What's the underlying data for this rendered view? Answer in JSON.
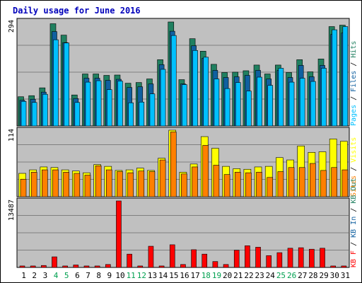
{
  "chart_data": {
    "type": "bar",
    "title": "Daily usage for June 2016",
    "categories": [
      "1",
      "2",
      "3",
      "4",
      "5",
      "6",
      "7",
      "8",
      "9",
      "10",
      "11",
      "12",
      "13",
      "14",
      "15",
      "16",
      "17",
      "18",
      "19",
      "20",
      "21",
      "22",
      "23",
      "24",
      "25",
      "26",
      "27",
      "28",
      "29",
      "30",
      "31"
    ],
    "weekend_days": [
      "4",
      "5",
      "11",
      "12",
      "18",
      "19",
      "25",
      "26"
    ],
    "colors": {
      "title": "#0000bb",
      "pages": "#00c0ff",
      "files": "#1060a0",
      "hits": "#208060",
      "sites": "#ff8000",
      "visits": "#ffff00",
      "kb_in": "#1060a0",
      "kb_out": "#208060",
      "kb_f": "#ff0000",
      "weekday_label": "#000000",
      "weekend_label": "#00a050",
      "plot_bg": "#c0c0c0",
      "gridline": "#808080"
    },
    "panels": [
      {
        "id": "hits-files-pages",
        "ymax_label": "294",
        "ymax": 294,
        "legend": [
          {
            "text": "Pages",
            "color": "#00c0ff"
          },
          {
            "text": " / ",
            "color": "#000000"
          },
          {
            "text": "Files",
            "color": "#1060a0"
          },
          {
            "text": " / ",
            "color": "#000000"
          },
          {
            "text": "Hits",
            "color": "#208060"
          }
        ],
        "series": [
          {
            "name": "Hits",
            "color": "#208060",
            "values": [
              82,
              85,
              107,
              287,
              255,
              87,
              146,
              146,
              142,
              143,
              120,
              122,
              132,
              186,
              292,
              130,
              245,
              210,
              173,
              150,
              151,
              155,
              171,
              146,
              171,
              150,
              186,
              152,
              188,
              279,
              283
            ]
          },
          {
            "name": "Files",
            "color": "#1060a0",
            "values": [
              72,
              75,
              95,
              265,
              234,
              77,
              134,
              134,
              128,
              131,
              108,
              110,
              118,
              172,
              266,
              118,
              225,
              190,
              156,
              136,
              138,
              142,
              156,
              132,
              156,
              136,
              170,
              138,
              170,
              257,
              261
            ]
          },
          {
            "name": "Pages",
            "color": "#00c0ff",
            "values": [
              69,
              66,
              89,
              242,
              233,
              66,
              123,
              127,
              102,
              126,
              65,
              67,
              90,
              159,
              254,
              116,
              212,
              193,
              132,
              105,
              122,
              98,
              137,
              114,
              162,
              123,
              134,
              125,
              162,
              270,
              279
            ]
          }
        ]
      },
      {
        "id": "visits-sites",
        "ymax_label": "114",
        "ymax": 114,
        "legend": [
          {
            "text": "Sites",
            "color": "#ff8000"
          },
          {
            "text": " / ",
            "color": "#000000"
          },
          {
            "text": "Visits",
            "color": "#ffff00"
          }
        ],
        "series": [
          {
            "name": "Visits",
            "color": "#ffff00",
            "values": [
              40,
              46,
              51,
              50,
              46,
              44,
              41,
              55,
              52,
              45,
              46,
              49,
              45,
              66,
              114,
              42,
              56,
              103,
              83,
              52,
              48,
              47,
              51,
              52,
              67,
              63,
              87,
              76,
              77,
              99,
              95
            ]
          },
          {
            "name": "Sites",
            "color": "#ff8000",
            "values": [
              30,
              42,
              46,
              46,
              42,
              40,
              37,
              53,
              46,
              43,
              41,
              44,
              43,
              63,
              111,
              39,
              51,
              88,
              54,
              38,
              42,
              41,
              42,
              33,
              43,
              50,
              50,
              57,
              45,
              50,
              46
            ]
          }
        ]
      },
      {
        "id": "kbytes",
        "ymax_label": "13487",
        "ymax": 13487,
        "legend": [
          {
            "text": "KB F",
            "color": "#ff0000"
          },
          {
            "text": " / ",
            "color": "#000000"
          },
          {
            "text": "KB In",
            "color": "#1060a0"
          },
          {
            "text": " / ",
            "color": "#000000"
          },
          {
            "text": "KB Out",
            "color": "#208060"
          }
        ],
        "series": [
          {
            "name": "KB F",
            "color": "#ff0000",
            "values": [
              300,
              300,
              400,
              2150,
              300,
              500,
              300,
              300,
              600,
              13487,
              2700,
              300,
              4300,
              300,
              4600,
              600,
              3600,
              2700,
              1200,
              600,
              3500,
              4400,
              4100,
              2400,
              3000,
              3900,
              4000,
              3700,
              3900,
              300,
              300
            ]
          }
        ]
      }
    ]
  }
}
